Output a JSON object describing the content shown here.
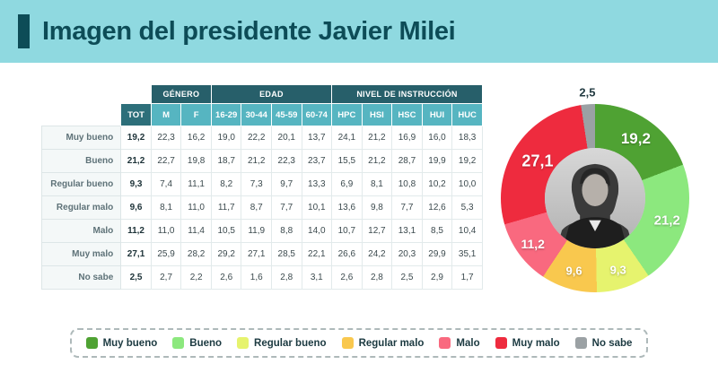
{
  "header": {
    "title": "Imagen del presidente Javier Milei"
  },
  "table": {
    "group_headers": [
      {
        "label": "GÉNERO",
        "span": 2
      },
      {
        "label": "EDAD",
        "span": 4
      },
      {
        "label": "NIVEL DE INSTRUCCIÓN",
        "span": 5
      }
    ],
    "sub_headers": [
      "TOT",
      "M",
      "F",
      "16-29",
      "30-44",
      "45-59",
      "60-74",
      "HPC",
      "HSI",
      "HSC",
      "HUI",
      "HUC"
    ],
    "rows": [
      {
        "label": "Muy bueno",
        "values": [
          "19,2",
          "22,3",
          "16,2",
          "19,0",
          "22,2",
          "20,1",
          "13,7",
          "24,1",
          "21,2",
          "16,9",
          "16,0",
          "18,3"
        ]
      },
      {
        "label": "Bueno",
        "values": [
          "21,2",
          "22,7",
          "19,8",
          "18,7",
          "21,2",
          "22,3",
          "23,7",
          "15,5",
          "21,2",
          "28,7",
          "19,9",
          "19,2"
        ]
      },
      {
        "label": "Regular bueno",
        "values": [
          "9,3",
          "7,4",
          "11,1",
          "8,2",
          "7,3",
          "9,7",
          "13,3",
          "6,9",
          "8,1",
          "10,8",
          "10,2",
          "10,0"
        ]
      },
      {
        "label": "Regular malo",
        "values": [
          "9,6",
          "8,1",
          "11,0",
          "11,7",
          "8,7",
          "7,7",
          "10,1",
          "13,6",
          "9,8",
          "7,7",
          "12,6",
          "5,3"
        ]
      },
      {
        "label": "Malo",
        "values": [
          "11,2",
          "11,0",
          "11,4",
          "10,5",
          "11,9",
          "8,8",
          "14,0",
          "10,7",
          "12,7",
          "13,1",
          "8,5",
          "10,4"
        ]
      },
      {
        "label": "Muy malo",
        "values": [
          "27,1",
          "25,9",
          "28,2",
          "29,2",
          "27,1",
          "28,5",
          "22,1",
          "26,6",
          "24,2",
          "20,3",
          "29,9",
          "35,1"
        ]
      },
      {
        "label": "No sabe",
        "values": [
          "2,5",
          "2,7",
          "2,2",
          "2,6",
          "1,6",
          "2,8",
          "3,1",
          "2,6",
          "2,8",
          "2,5",
          "2,9",
          "1,7"
        ]
      }
    ]
  },
  "chart_data": {
    "type": "pie",
    "title": "Imagen del presidente Javier Milei",
    "categories": [
      "Muy bueno",
      "Bueno",
      "Regular bueno",
      "Regular malo",
      "Malo",
      "Muy malo",
      "No sabe"
    ],
    "values": [
      19.2,
      21.2,
      9.3,
      9.6,
      11.2,
      27.1,
      2.5
    ],
    "labels": [
      "19,2",
      "21,2",
      "9,3",
      "9,6",
      "11,2",
      "27,1",
      "2,5"
    ],
    "colors": [
      "#4fa233",
      "#8ce87e",
      "#e6f36e",
      "#f9c84e",
      "#f9697f",
      "#ee2b3e",
      "#9ba1a4"
    ],
    "center_image": "milei-portrait",
    "start_angle_deg": 0,
    "direction": "clockwise",
    "legend_position": "bottom"
  },
  "legend": {
    "items": [
      {
        "label": "Muy bueno",
        "color": "#4fa233"
      },
      {
        "label": "Bueno",
        "color": "#8ce87e"
      },
      {
        "label": "Regular bueno",
        "color": "#e6f36e"
      },
      {
        "label": "Regular malo",
        "color": "#f9c84e"
      },
      {
        "label": "Malo",
        "color": "#f9697f"
      },
      {
        "label": "Muy malo",
        "color": "#ee2b3e"
      },
      {
        "label": "No sabe",
        "color": "#9ba1a4"
      }
    ]
  },
  "colors": {
    "banner_bg": "#8fd9e0",
    "title": "#0d4c57",
    "table_group_header_bg": "#275f6a",
    "table_sub_header_bg": "#56b5c1",
    "table_tot_header_bg": "#2d6f7a"
  }
}
